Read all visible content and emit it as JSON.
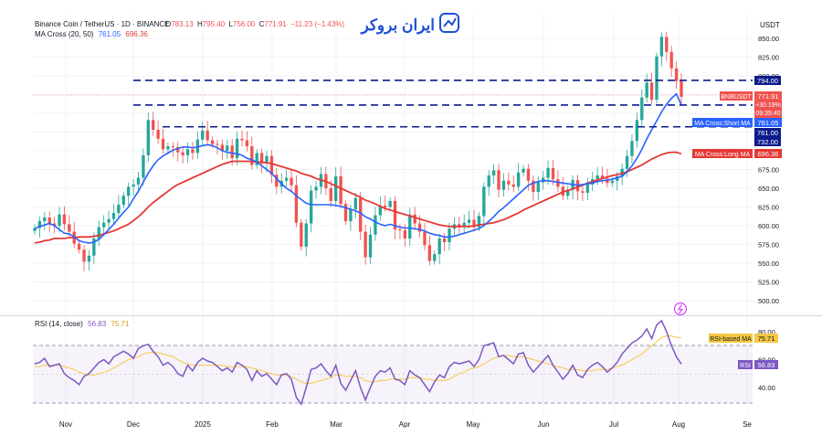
{
  "header": {
    "symbol_line": "Binance Coin / TetherUS · 1D · BINANCE",
    "ohlc": {
      "o_label": "O",
      "o_value": "783.13",
      "h_label": "H",
      "h_value": "795.40",
      "l_label": "L",
      "l_value": "756.00",
      "c_label": "C",
      "c_value": "771.91",
      "change": "−11.23 (−1.43%)"
    },
    "ma_line_label": "MA Cross (20, 50)",
    "ma_short_value": "761.05",
    "ma_long_value": "696.36"
  },
  "watermark": {
    "text": "ایران بروکر"
  },
  "price_axis": {
    "currency": "USDT",
    "ticks": [
      "850.00",
      "825.00",
      "800.00",
      "775.00",
      "750.00",
      "725.00",
      "700.00",
      "675.00",
      "650.00",
      "625.00",
      "600.00",
      "575.00",
      "550.00",
      "525.00",
      "500.00"
    ]
  },
  "price_labels": {
    "level_1": "794.00",
    "pair_label": "BNBUSDT",
    "last_price": "771.91",
    "change_pct": "+30.19%",
    "countdown": "09:35:40",
    "ma_short_name": "MA Cross:Short MA",
    "ma_short_value": "761.05",
    "level_2": "761.00",
    "level_3": "732.00",
    "ma_long_name": "MA Cross:Long MA",
    "ma_long_value": "696.36"
  },
  "rsi_panel": {
    "title": "RSI (14, close)",
    "rsi_value": "56.83",
    "ma_value": "75.71",
    "ticks": [
      "80.00",
      "60.00",
      "40.00"
    ],
    "ma_tag_name": "RSI-based MA",
    "ma_tag_value": "75.71",
    "rsi_tag_name": "RSI",
    "rsi_tag_value": "56.83"
  },
  "time_axis": {
    "labels": [
      "Nov",
      "Dec",
      "2025",
      "Feb",
      "Mar",
      "Apr",
      "May",
      "Jun",
      "Jul",
      "Aug",
      "Se"
    ]
  },
  "colors": {
    "up": "#26a69a",
    "down": "#ef5350",
    "ma_short": "#2962ff",
    "ma_long": "#e53935",
    "rsi": "#7e57c2",
    "rsi_ma": "#f5c842",
    "hline": "#0d1b8c",
    "axis_text": "#131722",
    "muted_text": "#787b86",
    "brand": "#1e4fd8"
  },
  "chart_data": {
    "type": "line",
    "series": [
      {
        "name": "BNBUSDT",
        "values": [
          597,
          606,
          611,
          603,
          600,
          615,
          602,
          592,
          576,
          568,
          552,
          560,
          583,
          598,
          604,
          609,
          617,
          628,
          640,
          652,
          655,
          664,
          694,
          741,
          728,
          716,
          702,
          706,
          705,
          698,
          694,
          702,
          697,
          715,
          727,
          714,
          709,
          708,
          700,
          707,
          690,
          716,
          714,
          706,
          681,
          697,
          683,
          693,
          668,
          652,
          660,
          664,
          654,
          604,
          572,
          603,
          647,
          652,
          669,
          650,
          633,
          666,
          629,
          606,
          622,
          637,
          592,
          558,
          588,
          614,
          627,
          625,
          633,
          595,
          594,
          583,
          615,
          603,
          592,
          574,
          553,
          562,
          583,
          578,
          596,
          602,
          599,
          604,
          608,
          598,
          613,
          652,
          667,
          674,
          648,
          660,
          655,
          652,
          671,
          676,
          660,
          645,
          658,
          664,
          677,
          662,
          652,
          640,
          648,
          661,
          646,
          644,
          655,
          662,
          667,
          663,
          657,
          660,
          666,
          676,
          693,
          713,
          741,
          771,
          791,
          768,
          826,
          852,
          832,
          810,
          793,
          772
        ]
      },
      {
        "name": "MA Cross:Short MA",
        "values": [
          596,
          599,
          601,
          603,
          600,
          595,
          590,
          589,
          585,
          580,
          578,
          577,
          578,
          582,
          588,
          595,
          602,
          610,
          618,
          625,
          636,
          646,
          658,
          670,
          680,
          688,
          693,
          697,
          701,
          703,
          705,
          705,
          704,
          705,
          707,
          708,
          707,
          704,
          700,
          698,
          697,
          696,
          694,
          690,
          688,
          685,
          680,
          675,
          670,
          663,
          656,
          650,
          646,
          640,
          635,
          630,
          628,
          628,
          628,
          628,
          628,
          627,
          626,
          624,
          622,
          620,
          617,
          612,
          609,
          605,
          602,
          600,
          602,
          600,
          598,
          597,
          597,
          596,
          595,
          593,
          590,
          588,
          587,
          585,
          585,
          586,
          588,
          590,
          592,
          594,
          596,
          600,
          606,
          612,
          619,
          624,
          630,
          636,
          642,
          648,
          654,
          657,
          659,
          660,
          660,
          659,
          658,
          657,
          656,
          655,
          654,
          655,
          656,
          657,
          659,
          660,
          661,
          662,
          664,
          666,
          672,
          680,
          690,
          702,
          716,
          728,
          740,
          752,
          762,
          770,
          776,
          761
        ]
      },
      {
        "name": "MA Cross:Long MA",
        "values": [
          577,
          578,
          580,
          581,
          583,
          583,
          583,
          584,
          584,
          585,
          585,
          585,
          586,
          587,
          589,
          591,
          593,
          596,
          599,
          602,
          607,
          612,
          618,
          625,
          631,
          636,
          641,
          646,
          651,
          655,
          658,
          661,
          664,
          667,
          670,
          673,
          676,
          679,
          682,
          684,
          686,
          686,
          686,
          686,
          686,
          685,
          685,
          684,
          683,
          681,
          679,
          677,
          675,
          673,
          670,
          668,
          666,
          663,
          661,
          659,
          656,
          653,
          650,
          647,
          644,
          641,
          638,
          634,
          632,
          629,
          626,
          623,
          621,
          619,
          617,
          615,
          613,
          611,
          609,
          607,
          605,
          603,
          601,
          600,
          599,
          599,
          599,
          599,
          599,
          600,
          601,
          602,
          603,
          604,
          606,
          608,
          611,
          614,
          617,
          621,
          624,
          627,
          630,
          633,
          636,
          639,
          642,
          645,
          647,
          649,
          652,
          654,
          657,
          659,
          661,
          663,
          665,
          667,
          668,
          670,
          672,
          675,
          678,
          681,
          685,
          689,
          692,
          695,
          697,
          698,
          698,
          696
        ]
      },
      {
        "name": "RSI",
        "values": [
          57,
          58,
          61,
          55,
          56,
          57,
          50,
          47,
          45,
          42,
          48,
          50,
          54,
          58,
          60,
          57,
          62,
          64,
          66,
          64,
          61,
          68,
          70,
          71,
          66,
          62,
          56,
          58,
          55,
          50,
          48,
          56,
          52,
          58,
          61,
          59,
          58,
          55,
          52,
          54,
          51,
          58,
          56,
          53,
          45,
          52,
          48,
          50,
          46,
          42,
          49,
          50,
          46,
          33,
          28,
          40,
          53,
          54,
          57,
          52,
          48,
          56,
          43,
          38,
          45,
          52,
          40,
          31,
          40,
          48,
          52,
          51,
          54,
          46,
          45,
          42,
          52,
          49,
          47,
          42,
          37,
          44,
          49,
          47,
          55,
          58,
          57,
          58,
          59,
          55,
          60,
          70,
          71,
          72,
          62,
          63,
          60,
          57,
          64,
          65,
          56,
          51,
          55,
          59,
          63,
          56,
          51,
          46,
          50,
          56,
          49,
          47,
          53,
          56,
          58,
          55,
          51,
          54,
          58,
          64,
          68,
          72,
          74,
          77,
          82,
          75,
          85,
          88,
          80,
          70,
          62,
          56.8
        ]
      },
      {
        "name": "RSI-based MA",
        "values": [
          55,
          55,
          56,
          56,
          56,
          56,
          55,
          54,
          53,
          51,
          50,
          49,
          49,
          50,
          51,
          52,
          54,
          56,
          58,
          60,
          61,
          62,
          64,
          65,
          65,
          65,
          64,
          63,
          62,
          60,
          58,
          57,
          56,
          56,
          56,
          56,
          56,
          56,
          56,
          55,
          55,
          55,
          55,
          55,
          54,
          53,
          52,
          51,
          50,
          49,
          49,
          49,
          48,
          46,
          44,
          43,
          43,
          44,
          45,
          46,
          47,
          49,
          49,
          48,
          48,
          48,
          47,
          45,
          44,
          44,
          45,
          45,
          46,
          46,
          46,
          46,
          47,
          47,
          47,
          46,
          46,
          45,
          45,
          45,
          46,
          48,
          50,
          51,
          53,
          54,
          55,
          57,
          59,
          61,
          62,
          63,
          63,
          62,
          62,
          62,
          61,
          60,
          59,
          58,
          57,
          56,
          55,
          54,
          53,
          53,
          53,
          52,
          52,
          52,
          53,
          53,
          53,
          54,
          55,
          56,
          58,
          60,
          62,
          64,
          67,
          70,
          73,
          76,
          77,
          77,
          76,
          75.7
        ]
      }
    ],
    "horizontal_levels": [
      794,
      761,
      732
    ],
    "y_range": [
      487,
      867
    ],
    "rsi_range": [
      20,
      95
    ],
    "rsi_bands": [
      70,
      30
    ],
    "xlabel": "",
    "ylabel": "",
    "grid": true
  }
}
